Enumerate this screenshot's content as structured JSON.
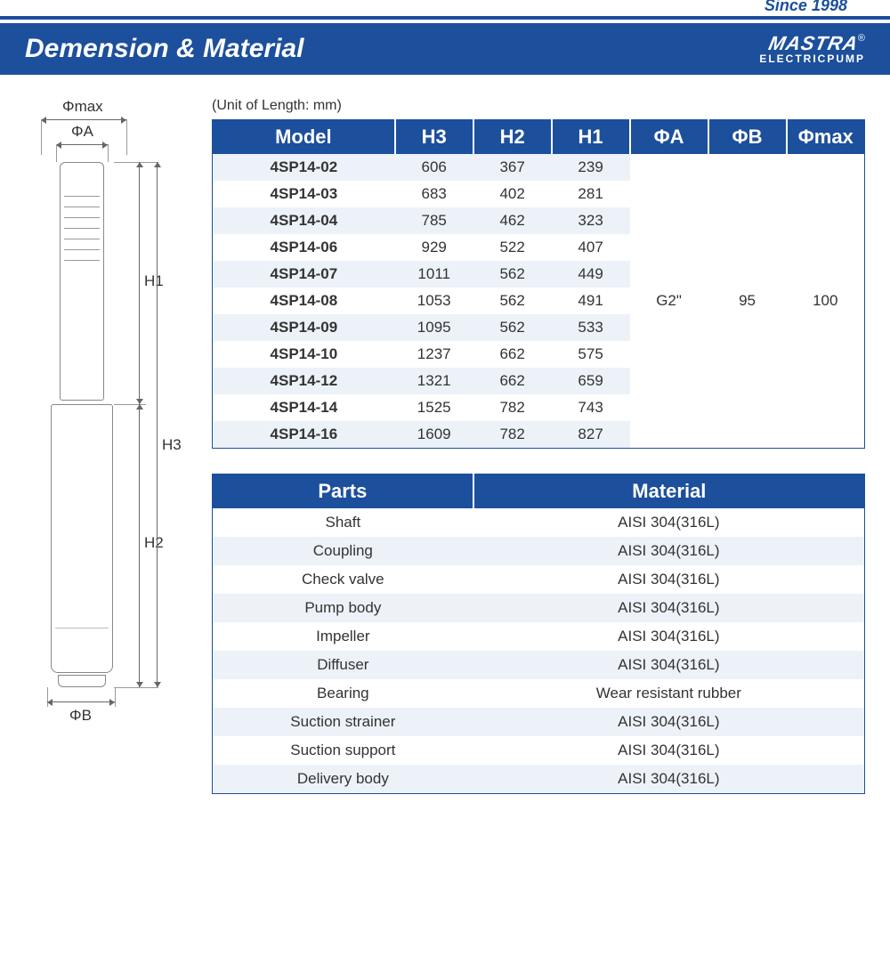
{
  "colors": {
    "brand_blue": "#1c4f9c",
    "row_tint": "#edf2f9",
    "white": "#ffffff",
    "text": "#333333",
    "line": "#888888"
  },
  "header": {
    "since": "Since 1998",
    "title": "Demension & Material",
    "logo_main": "MASTRA",
    "logo_r": "®",
    "logo_sub": "ELECTRICPUMP"
  },
  "diagram": {
    "labels": {
      "phi_max": "Φmax",
      "phi_a": "ΦA",
      "phi_b": "ΦB",
      "h1": "H1",
      "h2": "H2",
      "h3": "H3"
    }
  },
  "dim_table": {
    "unit_note": "(Unit of Length: mm)",
    "headers": [
      "Model",
      "H3",
      "H2",
      "H1",
      "ΦA",
      "ΦB",
      "Φmax"
    ],
    "col_widths_pct": [
      28,
      12,
      12,
      12,
      12,
      12,
      12
    ],
    "rows": [
      {
        "model": "4SP14-02",
        "h3": "606",
        "h2": "367",
        "h1": "239"
      },
      {
        "model": "4SP14-03",
        "h3": "683",
        "h2": "402",
        "h1": "281"
      },
      {
        "model": "4SP14-04",
        "h3": "785",
        "h2": "462",
        "h1": "323"
      },
      {
        "model": "4SP14-06",
        "h3": "929",
        "h2": "522",
        "h1": "407"
      },
      {
        "model": "4SP14-07",
        "h3": "1011",
        "h2": "562",
        "h1": "449"
      },
      {
        "model": "4SP14-08",
        "h3": "1053",
        "h2": "562",
        "h1": "491"
      },
      {
        "model": "4SP14-09",
        "h3": "1095",
        "h2": "562",
        "h1": "533"
      },
      {
        "model": "4SP14-10",
        "h3": "1237",
        "h2": "662",
        "h1": "575"
      },
      {
        "model": "4SP14-12",
        "h3": "1321",
        "h2": "662",
        "h1": "659"
      },
      {
        "model": "4SP14-14",
        "h3": "1525",
        "h2": "782",
        "h1": "743"
      },
      {
        "model": "4SP14-16",
        "h3": "1609",
        "h2": "782",
        "h1": "827"
      }
    ],
    "merged": {
      "phi_a": "G2\"",
      "phi_b": "95",
      "phi_max": "100"
    }
  },
  "mat_table": {
    "headers": [
      "Parts",
      "Material"
    ],
    "col_widths_pct": [
      40,
      60
    ],
    "rows": [
      {
        "part": "Shaft",
        "material": "AISI 304(316L)"
      },
      {
        "part": "Coupling",
        "material": "AISI 304(316L)"
      },
      {
        "part": "Check valve",
        "material": "AISI 304(316L)"
      },
      {
        "part": "Pump body",
        "material": "AISI 304(316L)"
      },
      {
        "part": "Impeller",
        "material": "AISI 304(316L)"
      },
      {
        "part": "Diffuser",
        "material": "AISI 304(316L)"
      },
      {
        "part": "Bearing",
        "material": "Wear resistant rubber"
      },
      {
        "part": "Suction strainer",
        "material": "AISI 304(316L)"
      },
      {
        "part": "Suction support",
        "material": "AISI 304(316L)"
      },
      {
        "part": "Delivery body",
        "material": "AISI 304(316L)"
      }
    ]
  }
}
